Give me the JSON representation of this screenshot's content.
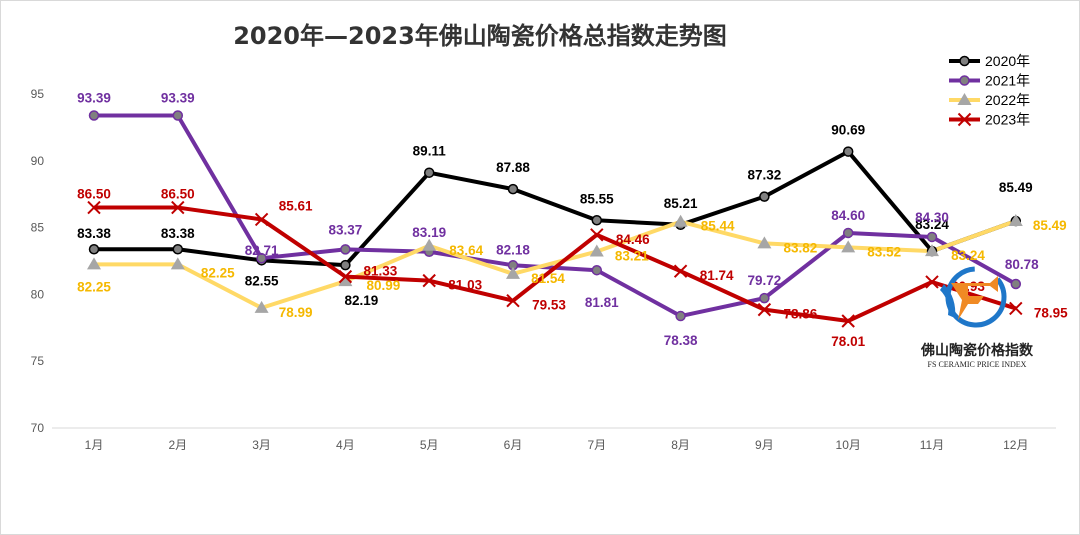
{
  "chart_data": {
    "type": "line",
    "title": "2020年—2023年佛山陶瓷价格总指数走势图",
    "categories": [
      "1月",
      "2月",
      "3月",
      "4月",
      "5月",
      "6月",
      "7月",
      "8月",
      "9月",
      "10月",
      "11月",
      "12月"
    ],
    "y_ticks": [
      "95",
      "90",
      "85",
      "80",
      "75",
      "70"
    ],
    "ylim": [
      70,
      95
    ],
    "grid": false,
    "legend_position": "top-right",
    "series": [
      {
        "name": "2020年",
        "color": "#000000",
        "marker": "circle",
        "values": [
          83.38,
          83.38,
          82.55,
          82.19,
          89.11,
          87.88,
          85.55,
          85.21,
          87.32,
          90.69,
          83.24,
          85.49
        ],
        "labels": [
          "83.38",
          "83.38",
          "82.55",
          "82.19",
          "89.11",
          "87.88",
          "85.55",
          "85.21",
          "87.32",
          "90.69",
          "83.24",
          "85.49"
        ]
      },
      {
        "name": "2021年",
        "color": "#7030a0",
        "marker": "circle",
        "values": [
          93.39,
          93.39,
          82.71,
          83.37,
          83.19,
          82.18,
          81.81,
          78.38,
          79.72,
          84.6,
          84.3,
          80.78
        ],
        "labels": [
          "93.39",
          "93.39",
          "82.71",
          "83.37",
          "83.19",
          "82.18",
          "81.81",
          "78.38",
          "79.72",
          "84.60",
          "84.30",
          "80.78"
        ]
      },
      {
        "name": "2022年",
        "color": "#ffd966",
        "marker": "triangle",
        "values": [
          82.25,
          82.25,
          78.99,
          80.99,
          83.64,
          81.54,
          83.21,
          85.44,
          83.82,
          83.52,
          83.24,
          85.49
        ],
        "labels": [
          "82.25",
          "82.25",
          "78.99",
          "80.99",
          "83.64",
          "81.54",
          "83.21",
          "85.44",
          "83.82",
          "83.52",
          "83.24",
          "85.49"
        ]
      },
      {
        "name": "2023年",
        "color": "#c00000",
        "marker": "x",
        "values": [
          86.5,
          86.5,
          85.61,
          81.33,
          81.03,
          79.53,
          84.46,
          81.74,
          78.86,
          78.01,
          80.93,
          78.95
        ],
        "labels": [
          "86.50",
          "86.50",
          "85.61",
          "81.33",
          "81.03",
          "79.53",
          "84.46",
          "81.74",
          "78.86",
          "78.01",
          "80.93",
          "78.95"
        ]
      }
    ]
  },
  "logo": {
    "cn": "佛山陶瓷价格指数",
    "en": "FS CERAMIC PRICE INDEX"
  },
  "colors": {
    "label_2022": "#f5b800",
    "axis": "#d9d9d9",
    "logo_blue": "#1f77c9",
    "logo_orange": "#f08a24"
  }
}
